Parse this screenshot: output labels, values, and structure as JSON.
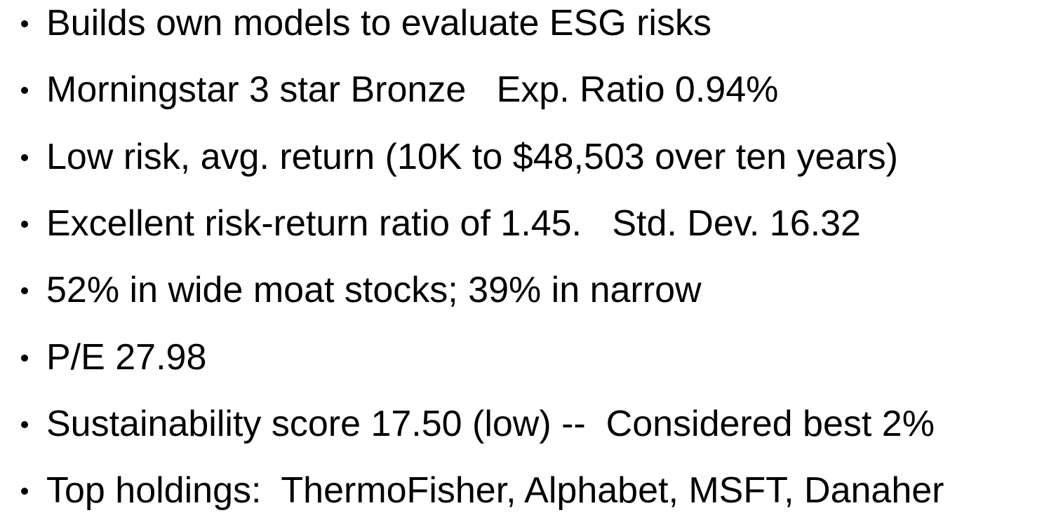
{
  "bullets": [
    "Builds own models to evaluate ESG risks",
    "Morningstar 3 star Bronze   Exp. Ratio 0.94%",
    "Low risk, avg. return (10K to $48,503 over ten years)",
    "Excellent risk-return ratio of 1.45.   Std. Dev. 16.32",
    "52% in wide moat stocks; 39% in narrow",
    "P/E 27.98",
    "Sustainability score 17.50 (low) --  Considered best 2%",
    "Top holdings:  ThermoFisher, Alphabet, MSFT, Danaher"
  ]
}
